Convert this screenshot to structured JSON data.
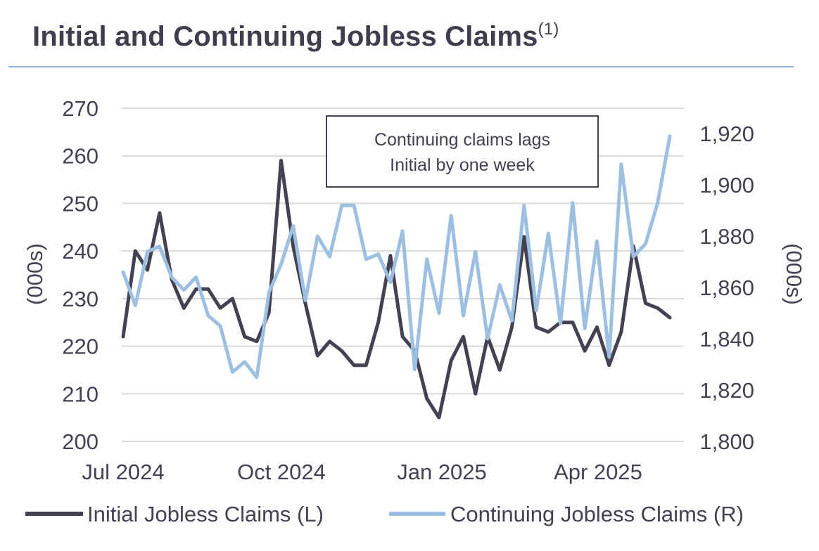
{
  "title": "Initial and Continuing Jobless Claims",
  "title_footnote": "(1)",
  "colors": {
    "initial": "#434152",
    "continuing": "#9dbfe1",
    "grid": "#d9d9d9",
    "rule": "#8fb3d6",
    "text": "#434152"
  },
  "chart_data": {
    "type": "line",
    "x_tick_labels": [
      "Jul 2024",
      "Oct 2024",
      "Jan 2025",
      "Apr 2025"
    ],
    "y_left": {
      "label": "(000s)",
      "ylim": [
        200,
        270
      ],
      "ticks": [
        "200",
        "210",
        "220",
        "230",
        "240",
        "250",
        "260",
        "270"
      ]
    },
    "y_right": {
      "label": "(000s)",
      "ylim": [
        1800,
        1920
      ],
      "ticks": [
        "1,800",
        "1,820",
        "1,840",
        "1,860",
        "1,880",
        "1,900",
        "1,920"
      ]
    },
    "grid": true,
    "legend_position": "bottom",
    "annotation": "Continuing claims lags\nInitial by one week",
    "annotation_lines": [
      "Continuing claims lags",
      "Initial by one week"
    ],
    "series": [
      {
        "name": "Initial Jobless Claims (L)",
        "axis": "left",
        "values": [
          222,
          240,
          236,
          248,
          234,
          228,
          232,
          232,
          228,
          230,
          222,
          221,
          227,
          259,
          241,
          229,
          218,
          221,
          219,
          216,
          216,
          225,
          239,
          222,
          219,
          209,
          205,
          217,
          222,
          210,
          222,
          215,
          224,
          243,
          224,
          223,
          225,
          225,
          219,
          224,
          216,
          223,
          241,
          229,
          228,
          226
        ]
      },
      {
        "name": "Continuing Jobless Claims (R)",
        "axis": "right",
        "values": [
          1866,
          1853,
          1874,
          1876,
          1864,
          1859,
          1864,
          1849,
          1845,
          1827,
          1831,
          1825,
          1858,
          1869,
          1884,
          1855,
          1880,
          1872,
          1892,
          1892,
          1871,
          1873,
          1862,
          1882,
          1828,
          1871,
          1850,
          1888,
          1849,
          1874,
          1840,
          1861,
          1847,
          1892,
          1851,
          1881,
          1846,
          1893,
          1844,
          1878,
          1833,
          1908,
          1872,
          1877,
          1893,
          1919
        ]
      }
    ]
  }
}
